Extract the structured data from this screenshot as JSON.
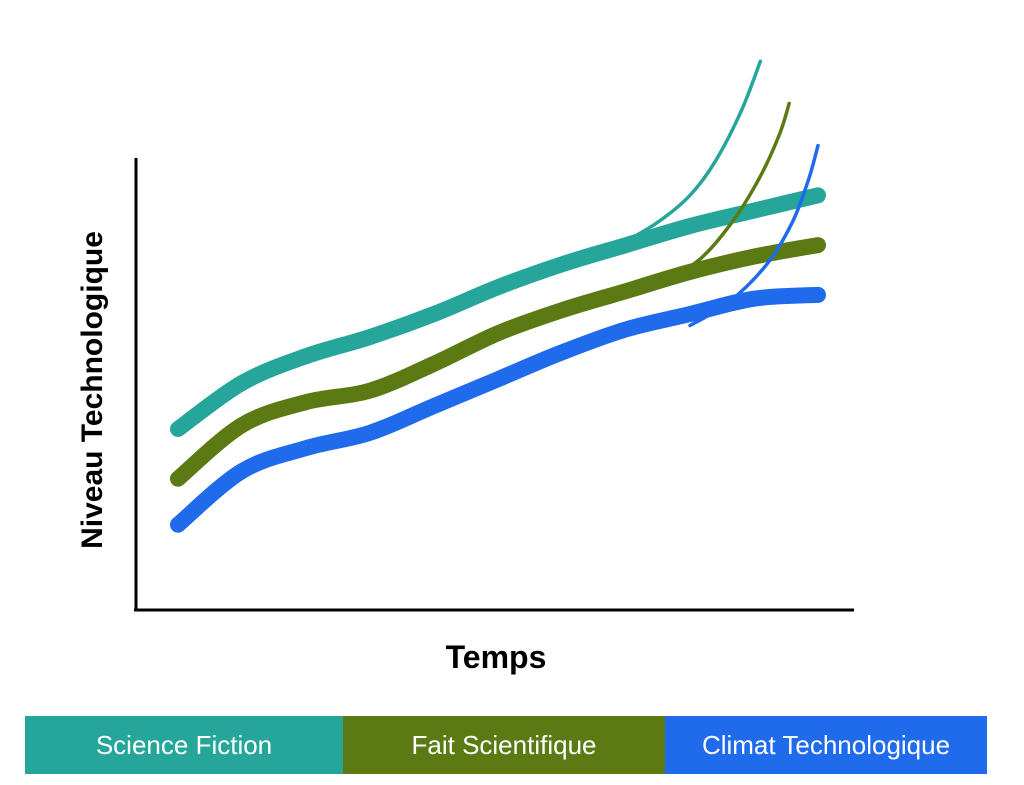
{
  "chart_data": {
    "type": "line",
    "title": "",
    "xlabel": "Temps",
    "ylabel": "Niveau Technologique",
    "xlim": [
      0,
      100
    ],
    "ylim": [
      0,
      100
    ],
    "grid": false,
    "legend_position": "bottom",
    "series": [
      {
        "name": "Science Fiction",
        "color": "#26a69a",
        "x": [
          0,
          10,
          20,
          30,
          40,
          50,
          60,
          70,
          80,
          90,
          100
        ],
        "values": [
          35,
          47,
          54,
          59,
          65,
          72,
          78,
          83,
          88,
          92,
          96
        ],
        "branch": {
          "x": [
            70,
            75,
            80,
            84,
            88,
            91
          ],
          "values": [
            84,
            89,
            96,
            105,
            118,
            131
          ]
        }
      },
      {
        "name": "Fait Scientifique",
        "color": "#5b7a13",
        "x": [
          0,
          10,
          20,
          30,
          40,
          50,
          60,
          70,
          80,
          90,
          100
        ],
        "values": [
          22,
          36,
          42,
          45,
          52,
          60,
          66,
          71,
          76,
          80,
          83
        ],
        "branch": {
          "x": [
            76,
            82,
            87,
            91,
            94,
            95.5
          ],
          "values": [
            73,
            80,
            90,
            101,
            112,
            120
          ]
        }
      },
      {
        "name": "Climat Technologique",
        "color": "#1f6bec",
        "x": [
          0,
          10,
          20,
          30,
          40,
          50,
          60,
          70,
          80,
          90,
          100
        ],
        "values": [
          10,
          24,
          30,
          34,
          41,
          48,
          55,
          61,
          65,
          69,
          70
        ],
        "branch": {
          "x": [
            80,
            86,
            92,
            96,
            98.5,
            100
          ],
          "values": [
            62,
            68,
            78,
            89,
            100,
            109
          ]
        }
      }
    ]
  },
  "legend": {
    "items": [
      {
        "label": "Science Fiction",
        "color": "#26a69a"
      },
      {
        "label": "Fait Scientifique",
        "color": "#5b7a13"
      },
      {
        "label": "Climat Technologique",
        "color": "#1f6bec"
      }
    ]
  }
}
